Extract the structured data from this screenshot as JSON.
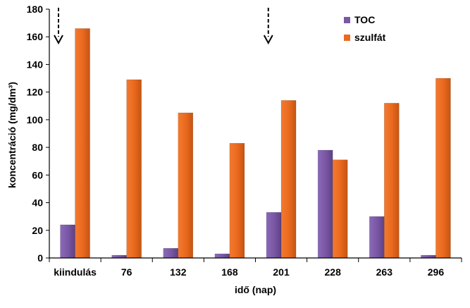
{
  "chart_data": {
    "type": "bar",
    "xlabel": "idő (nap)",
    "ylabel": "koncentráció (mg/dm³)",
    "ylim": [
      0,
      180
    ],
    "yticks": [
      0,
      20,
      40,
      60,
      80,
      100,
      120,
      140,
      160,
      180
    ],
    "grid": false,
    "legend_position": "top-right",
    "categories": [
      "kiindulás",
      "76",
      "132",
      "168",
      "201",
      "228",
      "263",
      "296"
    ],
    "series": [
      {
        "name": "TOC",
        "color": "#7a58a6",
        "values": [
          24,
          2,
          7,
          3,
          33,
          78,
          30,
          2
        ]
      },
      {
        "name": "szulfát",
        "color": "#ea6a1f",
        "values": [
          166,
          129,
          105,
          83,
          114,
          71,
          112,
          130
        ]
      }
    ],
    "annotations": [
      {
        "type": "arrow-down",
        "category": "kiindulás"
      },
      {
        "type": "arrow-down",
        "category": "201"
      }
    ]
  }
}
